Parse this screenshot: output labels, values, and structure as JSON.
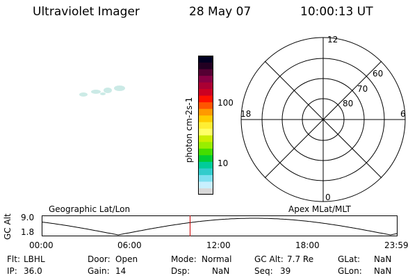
{
  "header": {
    "instrument": "Ultraviolet Imager",
    "date": "28 May 07",
    "time": "10:00:13 UT"
  },
  "colorbar": {
    "unit_label": "photon cm-2s-1",
    "ticks": [
      "100",
      "10"
    ],
    "colors": [
      "#d8d8d8",
      "#c8f0ff",
      "#7fe0f0",
      "#33cccc",
      "#00cc99",
      "#00cc33",
      "#44dd00",
      "#99ee00",
      "#ccee00",
      "#ffff66",
      "#ffee33",
      "#ffcc00",
      "#ff9900",
      "#ff5500",
      "#ff1100",
      "#cc0022",
      "#aa0033",
      "#880044",
      "#550033",
      "#220022",
      "#000022"
    ]
  },
  "polar": {
    "mlt_labels": [
      "12",
      "18",
      "6",
      "0"
    ],
    "lat_labels": [
      "60",
      "70",
      "80"
    ]
  },
  "timeline": {
    "left_title": "Geographic Lat/Lon",
    "right_title": "Apex MLat/MLT",
    "y_axis_label": "GC Alt",
    "y_ticks": [
      "9.0",
      "1.8"
    ],
    "x_ticks": [
      "00:00",
      "06:00",
      "12:00",
      "18:00",
      "23:59"
    ],
    "current_time_fraction": 0.417,
    "marker_color": "#cc0000"
  },
  "status": {
    "row1": [
      {
        "label": "Flt:",
        "value": "LBHL"
      },
      {
        "label": "Door:",
        "value": "Open"
      },
      {
        "label": "Mode:",
        "value": "Normal"
      },
      {
        "label": "GC Alt:",
        "value": "7.7 Re"
      },
      {
        "label": "GLat:",
        "value": "NaN"
      }
    ],
    "row2": [
      {
        "label": "IP:",
        "value": "36.0"
      },
      {
        "label": "Gain:",
        "value": "14"
      },
      {
        "label": "Dsp:",
        "value": "NaN"
      },
      {
        "label": "Seq:",
        "value": "39"
      },
      {
        "label": "GLon:",
        "value": "NaN"
      }
    ]
  }
}
